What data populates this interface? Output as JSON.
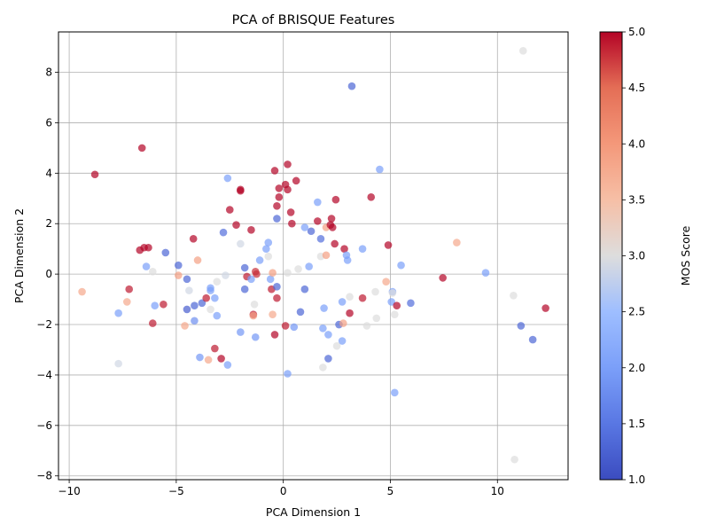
{
  "chart_data": {
    "type": "scatter",
    "title": "PCA of BRISQUE Features",
    "xlabel": "PCA Dimension 1",
    "ylabel": "PCA Dimension 2",
    "xlim": [
      -10.5,
      13.3
    ],
    "ylim": [
      -8.15,
      9.6
    ],
    "xticks": [
      -10,
      -5,
      0,
      5,
      10
    ],
    "yticks": [
      -8,
      -6,
      -4,
      -2,
      0,
      2,
      4,
      6,
      8
    ],
    "grid": true,
    "colorbar": {
      "label": "MOS Score",
      "min": 1.0,
      "max": 5.0,
      "ticks": [
        "1.0",
        "1.5",
        "2.0",
        "2.5",
        "3.0",
        "3.5",
        "4.0",
        "4.5",
        "5.0"
      ],
      "colormap": "coolwarm"
    },
    "points": [
      [
        -8.8,
        3.95,
        5.0
      ],
      [
        -6.6,
        5.0,
        5.0
      ],
      [
        -9.4,
        -0.7,
        3.8
      ],
      [
        -7.7,
        -1.55,
        2.0
      ],
      [
        -7.7,
        -3.55,
        2.9
      ],
      [
        -7.3,
        -1.1,
        3.8
      ],
      [
        -7.2,
        -0.6,
        4.9
      ],
      [
        -6.7,
        0.95,
        5.0
      ],
      [
        -6.5,
        1.05,
        5.0
      ],
      [
        -6.3,
        1.05,
        5.0
      ],
      [
        -6.4,
        0.3,
        2.0
      ],
      [
        -6.1,
        0.1,
        3.0
      ],
      [
        -6.0,
        -1.25,
        2.0
      ],
      [
        -6.1,
        -1.95,
        4.9
      ],
      [
        -5.6,
        -1.2,
        4.9
      ],
      [
        -5.5,
        0.85,
        1.3
      ],
      [
        -4.9,
        0.35,
        1.3
      ],
      [
        -4.9,
        -0.05,
        3.9
      ],
      [
        -4.5,
        -0.2,
        1.3
      ],
      [
        -4.5,
        -1.4,
        1.2
      ],
      [
        -4.4,
        -0.65,
        2.9
      ],
      [
        -4.2,
        1.4,
        5.0
      ],
      [
        -4.6,
        -2.05,
        3.8
      ],
      [
        -4.15,
        -1.25,
        1.3
      ],
      [
        -4.15,
        -1.85,
        1.8
      ],
      [
        -4.0,
        0.55,
        3.9
      ],
      [
        -3.9,
        -3.3,
        1.9
      ],
      [
        -3.8,
        -1.15,
        1.3
      ],
      [
        -3.5,
        -3.4,
        3.8
      ],
      [
        -3.4,
        -0.55,
        2.0
      ],
      [
        -3.4,
        -0.65,
        2.0
      ],
      [
        -3.4,
        -1.4,
        3.0
      ],
      [
        -3.6,
        -0.95,
        4.9
      ],
      [
        -3.2,
        -0.95,
        2.0
      ],
      [
        -3.1,
        -0.3,
        3.0
      ],
      [
        -3.1,
        -1.65,
        2.0
      ],
      [
        -3.2,
        -2.95,
        4.9
      ],
      [
        -2.9,
        -3.35,
        5.0
      ],
      [
        -2.8,
        1.65,
        1.4
      ],
      [
        -2.7,
        -0.05,
        2.9
      ],
      [
        -2.6,
        3.8,
        2.0
      ],
      [
        -2.5,
        2.55,
        5.0
      ],
      [
        -2.6,
        -3.6,
        2.0
      ],
      [
        -2.2,
        1.95,
        5.0
      ],
      [
        -2.0,
        3.35,
        5.0
      ],
      [
        -2.0,
        3.3,
        5.0
      ],
      [
        -2.0,
        1.2,
        2.9
      ],
      [
        -2.0,
        -2.3,
        1.9
      ],
      [
        -1.8,
        0.25,
        1.3
      ],
      [
        -1.8,
        -0.6,
        1.3
      ],
      [
        -1.7,
        -0.1,
        4.9
      ],
      [
        -1.5,
        1.75,
        5.0
      ],
      [
        -1.4,
        -1.6,
        4.9
      ],
      [
        -1.4,
        -1.65,
        3.9
      ],
      [
        -1.35,
        -1.2,
        3.0
      ],
      [
        -1.3,
        -2.5,
        1.9
      ],
      [
        -1.3,
        0.1,
        4.8
      ],
      [
        -1.25,
        0.0,
        4.8
      ],
      [
        -1.5,
        -0.2,
        2.0
      ],
      [
        -1.1,
        0.55,
        2.0
      ],
      [
        -0.8,
        1.0,
        2.0
      ],
      [
        -0.7,
        1.25,
        2.0
      ],
      [
        -0.7,
        0.7,
        3.0
      ],
      [
        -0.6,
        -0.2,
        2.0
      ],
      [
        -0.55,
        -0.6,
        4.9
      ],
      [
        -0.5,
        -1.6,
        3.8
      ],
      [
        -0.5,
        0.05,
        3.9
      ],
      [
        -0.4,
        4.1,
        5.0
      ],
      [
        -0.4,
        -2.4,
        5.0
      ],
      [
        -0.3,
        2.2,
        1.3
      ],
      [
        -0.3,
        -0.5,
        1.3
      ],
      [
        -0.3,
        -0.95,
        4.9
      ],
      [
        -0.3,
        2.7,
        5.0
      ],
      [
        -0.2,
        3.05,
        5.0
      ],
      [
        -0.2,
        3.4,
        5.0
      ],
      [
        0.1,
        3.55,
        5.0
      ],
      [
        0.2,
        4.35,
        5.0
      ],
      [
        0.2,
        3.35,
        5.0
      ],
      [
        0.2,
        0.05,
        3.0
      ],
      [
        0.1,
        -2.05,
        4.9
      ],
      [
        0.2,
        -3.95,
        2.0
      ],
      [
        0.35,
        2.45,
        5.0
      ],
      [
        0.4,
        2.0,
        5.0
      ],
      [
        0.5,
        -2.1,
        1.9
      ],
      [
        0.6,
        3.7,
        5.0
      ],
      [
        0.7,
        0.2,
        3.0
      ],
      [
        0.8,
        -1.5,
        1.3
      ],
      [
        1.0,
        -0.6,
        1.3
      ],
      [
        1.0,
        1.85,
        2.0
      ],
      [
        1.2,
        0.3,
        2.0
      ],
      [
        1.3,
        1.7,
        1.3
      ],
      [
        1.6,
        2.85,
        2.0
      ],
      [
        1.6,
        2.1,
        5.0
      ],
      [
        1.75,
        0.7,
        3.0
      ],
      [
        1.75,
        1.4,
        1.4
      ],
      [
        1.85,
        -2.15,
        2.0
      ],
      [
        1.85,
        -3.7,
        3.0
      ],
      [
        1.9,
        -1.35,
        2.0
      ],
      [
        2.0,
        0.75,
        3.9
      ],
      [
        2.0,
        1.85,
        3.9
      ],
      [
        2.1,
        -3.35,
        1.3
      ],
      [
        2.1,
        -2.4,
        2.0
      ],
      [
        2.2,
        1.95,
        5.0
      ],
      [
        2.25,
        2.2,
        5.0
      ],
      [
        2.3,
        1.85,
        5.0
      ],
      [
        2.4,
        1.2,
        5.0
      ],
      [
        2.45,
        2.95,
        5.0
      ],
      [
        2.5,
        -2.85,
        3.0
      ],
      [
        2.6,
        -2.0,
        1.3
      ],
      [
        2.75,
        -1.1,
        2.0
      ],
      [
        2.75,
        -2.65,
        2.0
      ],
      [
        2.8,
        -1.95,
        3.9
      ],
      [
        2.85,
        1.0,
        5.0
      ],
      [
        2.95,
        0.75,
        2.0
      ],
      [
        3.0,
        0.55,
        2.0
      ],
      [
        3.1,
        -0.9,
        3.0
      ],
      [
        3.1,
        -1.55,
        5.0
      ],
      [
        3.2,
        7.45,
        1.3
      ],
      [
        3.7,
        1.0,
        2.0
      ],
      [
        3.7,
        -0.95,
        4.9
      ],
      [
        3.9,
        -2.05,
        3.0
      ],
      [
        4.1,
        3.05,
        5.0
      ],
      [
        4.3,
        -0.7,
        3.0
      ],
      [
        4.35,
        -1.75,
        3.0
      ],
      [
        4.5,
        4.15,
        2.0
      ],
      [
        4.8,
        -0.3,
        3.8
      ],
      [
        4.9,
        1.15,
        5.0
      ],
      [
        5.05,
        -1.1,
        2.0
      ],
      [
        5.1,
        -0.7,
        2.0
      ],
      [
        5.1,
        -0.75,
        3.0
      ],
      [
        5.2,
        -1.6,
        3.0
      ],
      [
        5.2,
        -4.7,
        2.0
      ],
      [
        5.3,
        -1.25,
        5.0
      ],
      [
        5.5,
        0.35,
        2.0
      ],
      [
        5.95,
        -1.15,
        1.4
      ],
      [
        7.45,
        -0.15,
        5.0
      ],
      [
        8.1,
        1.25,
        3.8
      ],
      [
        9.45,
        0.05,
        2.0
      ],
      [
        10.75,
        -0.85,
        3.0
      ],
      [
        10.8,
        -7.35,
        3.0
      ],
      [
        11.2,
        8.85,
        3.0
      ],
      [
        11.1,
        -2.05,
        1.3
      ],
      [
        11.65,
        -2.6,
        1.3
      ],
      [
        12.25,
        -1.35,
        5.0
      ]
    ]
  }
}
